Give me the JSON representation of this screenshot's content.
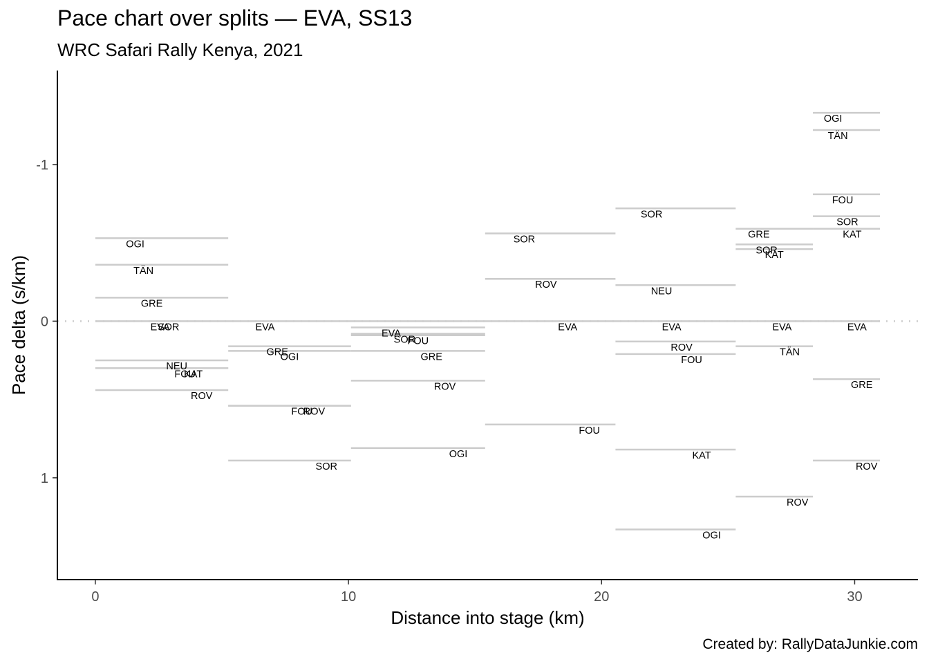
{
  "title": "Pace chart over splits — EVA, SS13",
  "subtitle": "WRC Safari Rally Kenya, 2021",
  "caption": "Created by: RallyDataJunkie.com",
  "chart_data": {
    "type": "segment",
    "title": "Pace chart over splits — EVA, SS13",
    "subtitle": "WRC Safari Rally Kenya, 2021",
    "xlabel": "Distance into stage (km)",
    "ylabel": "Pace delta (s/km)",
    "xlim": [
      -1.5,
      32.5
    ],
    "ylim": [
      1.65,
      -1.6
    ],
    "y_reversed": true,
    "x_ticks": [
      0,
      10,
      20,
      30
    ],
    "y_ticks": [
      -1,
      0,
      1
    ],
    "x_tick_labels": [
      "0",
      "10",
      "20",
      "30"
    ],
    "y_tick_labels": [
      "-1",
      "0",
      "1"
    ],
    "reference_line": 0,
    "grid": false,
    "segment_color": "#cccccc",
    "reference_color": "#cccccc",
    "splits": [
      {
        "x_start": 0.0,
        "x_end": 5.25,
        "entries": [
          {
            "driver": "OGI",
            "pace": -0.53
          },
          {
            "driver": "TÄN",
            "pace": -0.36
          },
          {
            "driver": "GRE",
            "pace": -0.15
          },
          {
            "driver": "EVA",
            "pace": 0.0
          },
          {
            "driver": "SOR",
            "pace": 0.0
          },
          {
            "driver": "NEU",
            "pace": 0.25
          },
          {
            "driver": "FOU",
            "pace": 0.3
          },
          {
            "driver": "KAT",
            "pace": 0.3
          },
          {
            "driver": "ROV",
            "pace": 0.44
          }
        ]
      },
      {
        "x_start": 5.25,
        "x_end": 10.1,
        "entries": [
          {
            "driver": "EVA",
            "pace": 0.0
          },
          {
            "driver": "GRE",
            "pace": 0.16
          },
          {
            "driver": "OGI",
            "pace": 0.19
          },
          {
            "driver": "FOU",
            "pace": 0.54
          },
          {
            "driver": "ROV",
            "pace": 0.54
          },
          {
            "driver": "SOR",
            "pace": 0.89
          }
        ]
      },
      {
        "x_start": 10.1,
        "x_end": 15.4,
        "entries": [
          {
            "driver": "EVA",
            "pace": 0.04
          },
          {
            "driver": "SOR",
            "pace": 0.08
          },
          {
            "driver": "FOU",
            "pace": 0.09
          },
          {
            "driver": "GRE",
            "pace": 0.19
          },
          {
            "driver": "ROV",
            "pace": 0.38
          },
          {
            "driver": "OGI",
            "pace": 0.81
          }
        ]
      },
      {
        "x_start": 15.4,
        "x_end": 20.55,
        "entries": [
          {
            "driver": "SOR",
            "pace": -0.56
          },
          {
            "driver": "ROV",
            "pace": -0.27
          },
          {
            "driver": "EVA",
            "pace": 0.0
          },
          {
            "driver": "FOU",
            "pace": 0.66
          }
        ]
      },
      {
        "x_start": 20.55,
        "x_end": 25.3,
        "entries": [
          {
            "driver": "SOR",
            "pace": -0.72
          },
          {
            "driver": "NEU",
            "pace": -0.23
          },
          {
            "driver": "EVA",
            "pace": 0.0
          },
          {
            "driver": "ROV",
            "pace": 0.13
          },
          {
            "driver": "FOU",
            "pace": 0.21
          },
          {
            "driver": "KAT",
            "pace": 0.82
          },
          {
            "driver": "OGI",
            "pace": 1.33
          }
        ]
      },
      {
        "x_start": 25.3,
        "x_end": 28.35,
        "entries": [
          {
            "driver": "GRE",
            "pace": -0.59
          },
          {
            "driver": "SOR",
            "pace": -0.49
          },
          {
            "driver": "KAT",
            "pace": -0.46
          },
          {
            "driver": "EVA",
            "pace": 0.0
          },
          {
            "driver": "TÄN",
            "pace": 0.16
          },
          {
            "driver": "ROV",
            "pace": 1.12
          }
        ]
      },
      {
        "x_start": 28.35,
        "x_end": 31.0,
        "entries": [
          {
            "driver": "OGI",
            "pace": -1.33
          },
          {
            "driver": "TÄN",
            "pace": -1.22
          },
          {
            "driver": "FOU",
            "pace": -0.81
          },
          {
            "driver": "SOR",
            "pace": -0.67
          },
          {
            "driver": "KAT",
            "pace": -0.59
          },
          {
            "driver": "EVA",
            "pace": 0.0
          },
          {
            "driver": "GRE",
            "pace": 0.37
          },
          {
            "driver": "ROV",
            "pace": 0.89
          }
        ]
      }
    ]
  }
}
